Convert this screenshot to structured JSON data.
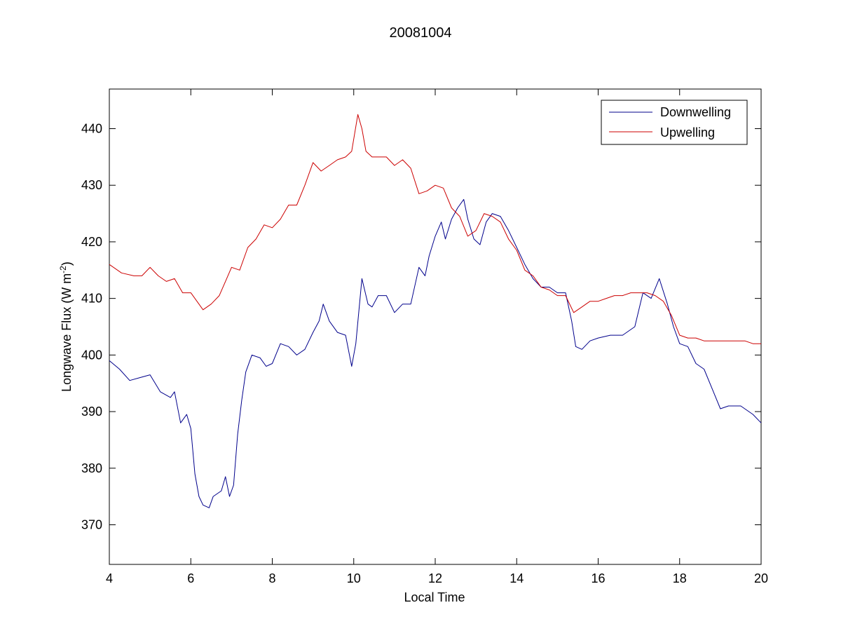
{
  "chart_data": {
    "type": "line",
    "title": "20081004",
    "xlabel": "Local Time",
    "ylabel": "Longwave Flux (W m",
    "ylabel_suffix": ")",
    "ylabel_superscript": "-2",
    "xlim": [
      4,
      20
    ],
    "ylim": [
      363,
      447
    ],
    "x_ticks": [
      4,
      6,
      8,
      10,
      12,
      14,
      16,
      18,
      20
    ],
    "y_ticks": [
      370,
      380,
      390,
      400,
      410,
      420,
      430,
      440
    ],
    "grid": false,
    "legend_position": "top-right",
    "series": [
      {
        "name": "Downwelling",
        "color": "#00008b",
        "x": [
          4.0,
          4.25,
          4.5,
          4.75,
          5.0,
          5.25,
          5.5,
          5.6,
          5.75,
          5.9,
          6.0,
          6.1,
          6.2,
          6.3,
          6.45,
          6.55,
          6.75,
          6.85,
          6.95,
          7.05,
          7.15,
          7.25,
          7.35,
          7.5,
          7.7,
          7.85,
          8.0,
          8.2,
          8.4,
          8.6,
          8.8,
          9.0,
          9.15,
          9.25,
          9.4,
          9.6,
          9.8,
          9.95,
          10.05,
          10.2,
          10.35,
          10.45,
          10.6,
          10.8,
          11.0,
          11.2,
          11.4,
          11.6,
          11.75,
          11.85,
          12.0,
          12.15,
          12.25,
          12.4,
          12.55,
          12.7,
          12.8,
          12.95,
          13.1,
          13.25,
          13.4,
          13.6,
          13.8,
          14.0,
          14.2,
          14.4,
          14.6,
          14.8,
          15.0,
          15.2,
          15.35,
          15.45,
          15.6,
          15.8,
          16.0,
          16.3,
          16.6,
          16.9,
          17.1,
          17.3,
          17.5,
          17.7,
          17.85,
          18.0,
          18.2,
          18.4,
          18.6,
          18.8,
          19.0,
          19.2,
          19.5,
          19.8,
          20.0
        ],
        "y": [
          399,
          397.5,
          395.5,
          396,
          396.5,
          393.5,
          392.5,
          393.5,
          388,
          389.5,
          387,
          379,
          375,
          373.5,
          373,
          375,
          376,
          378.5,
          375,
          377,
          386,
          392,
          397,
          400,
          399.5,
          398,
          398.5,
          402,
          401.5,
          400,
          401,
          404,
          406,
          409,
          406,
          404,
          403.5,
          398,
          402,
          413.5,
          409,
          408.5,
          410.5,
          410.5,
          407.5,
          409,
          409,
          415.5,
          414,
          417.5,
          421,
          423.5,
          420.5,
          424,
          426,
          427.5,
          424,
          420.5,
          419.5,
          423.5,
          425,
          424.5,
          422,
          419,
          416,
          413.5,
          412,
          412,
          411,
          411,
          406,
          401.5,
          401,
          402.5,
          403,
          403.5,
          403.5,
          405,
          411,
          410,
          413.5,
          409,
          405,
          402,
          401.5,
          398.5,
          397.5,
          394,
          390.5,
          391,
          391,
          389.5,
          388
        ]
      },
      {
        "name": "Upwelling",
        "color": "#cc0000",
        "x": [
          4.0,
          4.3,
          4.6,
          4.8,
          5.0,
          5.2,
          5.4,
          5.6,
          5.8,
          6.0,
          6.15,
          6.3,
          6.5,
          6.7,
          6.85,
          7.0,
          7.2,
          7.4,
          7.6,
          7.8,
          8.0,
          8.2,
          8.4,
          8.6,
          8.8,
          9.0,
          9.2,
          9.4,
          9.6,
          9.8,
          9.95,
          10.1,
          10.2,
          10.3,
          10.45,
          10.6,
          10.8,
          11.0,
          11.2,
          11.4,
          11.6,
          11.8,
          12.0,
          12.2,
          12.4,
          12.6,
          12.8,
          13.0,
          13.2,
          13.4,
          13.6,
          13.8,
          14.0,
          14.2,
          14.4,
          14.6,
          14.8,
          15.0,
          15.2,
          15.4,
          15.6,
          15.8,
          16.0,
          16.2,
          16.4,
          16.6,
          16.8,
          17.0,
          17.2,
          17.4,
          17.6,
          17.8,
          18.0,
          18.2,
          18.4,
          18.6,
          18.8,
          19.0,
          19.3,
          19.6,
          19.8,
          20.0
        ],
        "y": [
          416,
          414.5,
          414,
          414,
          415.5,
          414,
          413,
          413.5,
          411,
          411,
          409.5,
          408,
          409,
          410.5,
          413,
          415.5,
          415,
          419,
          420.5,
          423,
          422.5,
          424,
          426.5,
          426.5,
          430,
          434,
          432.5,
          433.5,
          434.5,
          435,
          436,
          442.5,
          440,
          436,
          435,
          435,
          435,
          433.5,
          434.5,
          433,
          428.5,
          429,
          430,
          429.5,
          426,
          424.5,
          421,
          422,
          425,
          424.5,
          423.5,
          420.5,
          418.5,
          415,
          414,
          412,
          411.5,
          410.5,
          410.5,
          407.5,
          408.5,
          409.5,
          409.5,
          410,
          410.5,
          410.5,
          411,
          411,
          411,
          410.5,
          409.5,
          407,
          403.5,
          403,
          403,
          402.5,
          402.5,
          402.5,
          402.5,
          402.5,
          402,
          402
        ]
      }
    ]
  }
}
